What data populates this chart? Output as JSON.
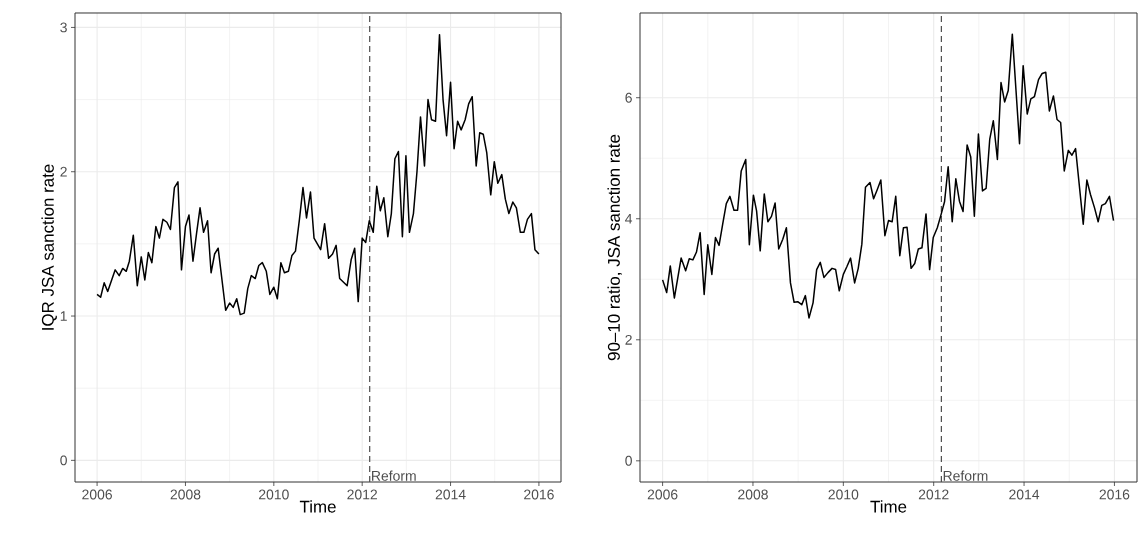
{
  "chart_data": [
    {
      "type": "line",
      "xlabel": "Time",
      "ylabel": "IQR JSA sanction rate",
      "xlim": [
        2005.5,
        2016.5
      ],
      "ylim": [
        -0.15,
        3.1
      ],
      "xticks": [
        2006,
        2008,
        2010,
        2012,
        2014,
        2016
      ],
      "yticks": [
        0,
        1,
        2,
        3
      ],
      "grid": true,
      "ref_lines": [
        {
          "axis": "x",
          "value": 2012.17,
          "label": "Reform",
          "color": "#4d4d4d",
          "line_style": "dashed"
        }
      ],
      "series": [
        {
          "color": "#000000",
          "x": [
            2006.0,
            2006.08,
            2006.16,
            2006.24,
            2006.41,
            2006.5,
            2006.58,
            2006.66,
            2006.73,
            2006.82,
            2006.91,
            2007.0,
            2007.08,
            2007.16,
            2007.24,
            2007.33,
            2007.41,
            2007.49,
            2007.58,
            2007.66,
            2007.75,
            2007.83,
            2007.91,
            2008.0,
            2008.08,
            2008.17,
            2008.25,
            2008.33,
            2008.41,
            2008.5,
            2008.58,
            2008.66,
            2008.74,
            2008.91,
            2009.0,
            2009.08,
            2009.16,
            2009.24,
            2009.33,
            2009.41,
            2009.49,
            2009.58,
            2009.66,
            2009.74,
            2009.83,
            2009.91,
            2010.0,
            2010.08,
            2010.16,
            2010.24,
            2010.33,
            2010.41,
            2010.49,
            2010.58,
            2010.66,
            2010.74,
            2010.83,
            2010.91,
            2011.06,
            2011.15,
            2011.24,
            2011.33,
            2011.41,
            2011.49,
            2011.66,
            2011.75,
            2011.83,
            2011.91,
            2012.0,
            2012.08,
            2012.16,
            2012.25,
            2012.33,
            2012.41,
            2012.49,
            2012.58,
            2012.66,
            2012.74,
            2012.82,
            2012.91,
            2012.99,
            2013.07,
            2013.16,
            2013.24,
            2013.32,
            2013.41,
            2013.49,
            2013.57,
            2013.66,
            2013.75,
            2013.83,
            2013.91,
            2014.0,
            2014.08,
            2014.16,
            2014.24,
            2014.33,
            2014.41,
            2014.49,
            2014.58,
            2014.66,
            2014.74,
            2014.82,
            2014.91,
            2014.99,
            2015.07,
            2015.16,
            2015.24,
            2015.32,
            2015.41,
            2015.49,
            2015.58,
            2015.66,
            2015.74,
            2015.83,
            2015.91,
            2016.0
          ],
          "values": [
            1.15,
            1.13,
            1.23,
            1.17,
            1.32,
            1.28,
            1.33,
            1.31,
            1.38,
            1.56,
            1.21,
            1.41,
            1.25,
            1.44,
            1.37,
            1.62,
            1.54,
            1.67,
            1.65,
            1.6,
            1.89,
            1.93,
            1.32,
            1.62,
            1.7,
            1.38,
            1.57,
            1.75,
            1.58,
            1.66,
            1.3,
            1.43,
            1.47,
            1.04,
            1.09,
            1.06,
            1.12,
            1.01,
            1.02,
            1.19,
            1.28,
            1.26,
            1.35,
            1.37,
            1.31,
            1.15,
            1.2,
            1.12,
            1.37,
            1.3,
            1.31,
            1.42,
            1.45,
            1.67,
            1.89,
            1.68,
            1.86,
            1.54,
            1.46,
            1.64,
            1.4,
            1.43,
            1.49,
            1.26,
            1.21,
            1.39,
            1.47,
            1.1,
            1.54,
            1.51,
            1.66,
            1.58,
            1.9,
            1.73,
            1.82,
            1.55,
            1.71,
            2.09,
            2.14,
            1.55,
            2.11,
            1.58,
            1.71,
            2.0,
            2.38,
            2.04,
            2.5,
            2.36,
            2.35,
            2.95,
            2.5,
            2.25,
            2.62,
            2.16,
            2.35,
            2.29,
            2.36,
            2.47,
            2.52,
            2.04,
            2.27,
            2.26,
            2.13,
            1.84,
            2.07,
            1.92,
            1.98,
            1.81,
            1.71,
            1.79,
            1.75,
            1.58,
            1.58,
            1.67,
            1.71,
            1.46,
            1.43
          ]
        }
      ]
    },
    {
      "type": "line",
      "xlabel": "Time",
      "ylabel": "90–10 ratio, JSA sanction rate",
      "xlim": [
        2005.5,
        2016.5
      ],
      "ylim": [
        -0.35,
        7.4
      ],
      "xticks": [
        2006,
        2008,
        2010,
        2012,
        2014,
        2016
      ],
      "yticks": [
        0,
        2,
        4,
        6
      ],
      "grid": true,
      "ref_lines": [
        {
          "axis": "x",
          "value": 2012.17,
          "label": "Reform",
          "color": "#4d4d4d",
          "line_style": "dashed"
        }
      ],
      "series": [
        {
          "color": "#000000",
          "x": [
            2006.0,
            2006.09,
            2006.17,
            2006.26,
            2006.41,
            2006.51,
            2006.59,
            2006.67,
            2006.75,
            2006.83,
            2006.92,
            2007.0,
            2007.09,
            2007.17,
            2007.25,
            2007.33,
            2007.41,
            2007.49,
            2007.58,
            2007.66,
            2007.74,
            2007.84,
            2007.92,
            2008.01,
            2008.08,
            2008.16,
            2008.25,
            2008.33,
            2008.41,
            2008.49,
            2008.57,
            2008.66,
            2008.74,
            2008.83,
            2008.91,
            2008.99,
            2009.08,
            2009.16,
            2009.24,
            2009.33,
            2009.41,
            2009.49,
            2009.57,
            2009.66,
            2009.75,
            2009.83,
            2009.91,
            2010.0,
            2010.08,
            2010.16,
            2010.25,
            2010.33,
            2010.41,
            2010.49,
            2010.59,
            2010.67,
            2010.75,
            2010.83,
            2010.92,
            2011.0,
            2011.08,
            2011.16,
            2011.25,
            2011.33,
            2011.41,
            2011.5,
            2011.58,
            2011.66,
            2011.74,
            2011.83,
            2011.91,
            2011.99,
            2012.08,
            2012.16,
            2012.24,
            2012.32,
            2012.41,
            2012.49,
            2012.57,
            2012.65,
            2012.74,
            2012.82,
            2012.9,
            2012.99,
            2013.08,
            2013.16,
            2013.24,
            2013.32,
            2013.41,
            2013.49,
            2013.57,
            2013.65,
            2013.74,
            2013.82,
            2013.9,
            2013.98,
            2014.07,
            2014.15,
            2014.23,
            2014.32,
            2014.4,
            2014.48,
            2014.56,
            2014.65,
            2014.73,
            2014.81,
            2014.89,
            2014.98,
            2015.06,
            2015.14,
            2015.31,
            2015.39,
            2015.47,
            2015.56,
            2015.64,
            2015.72,
            2015.8,
            2015.89,
            2015.98
          ],
          "values": [
            2.99,
            2.78,
            3.22,
            2.69,
            3.35,
            3.14,
            3.34,
            3.32,
            3.45,
            3.77,
            2.75,
            3.57,
            3.08,
            3.69,
            3.56,
            3.91,
            4.25,
            4.37,
            4.14,
            4.14,
            4.79,
            4.98,
            3.57,
            4.39,
            4.13,
            3.47,
            4.41,
            3.95,
            4.04,
            4.26,
            3.5,
            3.66,
            3.85,
            2.94,
            2.62,
            2.63,
            2.58,
            2.73,
            2.36,
            2.61,
            3.16,
            3.28,
            3.03,
            3.11,
            3.18,
            3.16,
            2.81,
            3.08,
            3.21,
            3.35,
            2.94,
            3.18,
            3.58,
            4.52,
            4.6,
            4.33,
            4.48,
            4.64,
            3.72,
            3.97,
            3.95,
            4.37,
            3.39,
            3.85,
            3.86,
            3.18,
            3.26,
            3.5,
            3.52,
            4.08,
            3.16,
            3.69,
            3.85,
            4.06,
            4.28,
            4.86,
            3.95,
            4.66,
            4.29,
            4.12,
            5.22,
            5.02,
            4.04,
            5.4,
            4.46,
            4.5,
            5.31,
            5.62,
            4.98,
            6.25,
            5.93,
            6.12,
            7.05,
            6.14,
            5.24,
            6.53,
            5.73,
            5.98,
            6.02,
            6.3,
            6.4,
            6.42,
            5.78,
            6.03,
            5.64,
            5.59,
            4.79,
            5.13,
            5.05,
            5.16,
            3.91,
            4.64,
            4.4,
            4.18,
            3.95,
            4.22,
            4.25,
            4.37,
            3.97
          ]
        }
      ]
    }
  ]
}
